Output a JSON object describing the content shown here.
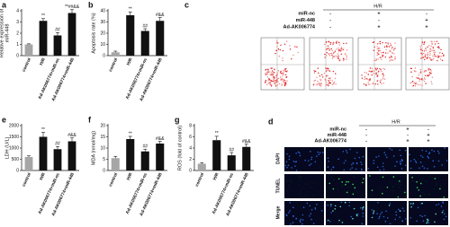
{
  "chart_data": [
    {
      "type": "bar",
      "panel": "a",
      "ylabel": [
        "Relative expression of",
        "miR-448"
      ],
      "categories": [
        "control",
        "H/R",
        "Ad-AK006774+miR-nc",
        "Ad-AK006774+miR-448"
      ],
      "values": [
        1,
        3.1,
        1.8,
        3.8
      ],
      "errors": [
        0.05,
        0.2,
        0.25,
        0.3
      ],
      "colors": [
        "#a6a6a6",
        "#111111",
        "#111111",
        "#111111"
      ],
      "annotations": [
        null,
        "**",
        "##",
        "**##&&"
      ],
      "ylim": [
        0,
        4
      ],
      "yticks": [
        0,
        1,
        2,
        3,
        4
      ]
    },
    {
      "type": "bar",
      "panel": "b",
      "ylabel": [
        "Apoptosis rate (%)"
      ],
      "categories": [
        "control",
        "H/R",
        "Ad-AK006774+miR-nc",
        "Ad-AK006774+miR-448"
      ],
      "values": [
        3,
        36,
        22,
        31
      ],
      "errors": [
        1,
        3,
        2,
        3
      ],
      "colors": [
        "#a6a6a6",
        "#111111",
        "#111111",
        "#111111"
      ],
      "annotations": [
        null,
        "**",
        "##",
        "#&&"
      ],
      "ylim": [
        0,
        40
      ],
      "yticks": [
        0,
        10,
        20,
        30,
        40
      ]
    },
    {
      "type": "bar",
      "panel": "e",
      "ylabel": [
        "LDH (U/L)"
      ],
      "categories": [
        "control",
        "H/R",
        "Ad-AK006774+miR-nc",
        "Ad-AK006774+miR-448"
      ],
      "values": [
        600,
        1500,
        950,
        1300
      ],
      "errors": [
        50,
        200,
        120,
        150
      ],
      "colors": [
        "#a6a6a6",
        "#111111",
        "#111111",
        "#111111"
      ],
      "annotations": [
        null,
        "**",
        "##",
        "#&&"
      ],
      "ylim": [
        0,
        2000
      ],
      "yticks": [
        0,
        500,
        1000,
        1500,
        2000
      ]
    },
    {
      "type": "bar",
      "panel": "f",
      "ylabel": [
        "MDA (nmol/mg)"
      ],
      "categories": [
        "control",
        "H/R",
        "Ad-AK006774+miR-nc",
        "Ad-AK006774+miR-448"
      ],
      "values": [
        5.5,
        14,
        8.5,
        12
      ],
      "errors": [
        0.8,
        1.2,
        1,
        1
      ],
      "colors": [
        "#a6a6a6",
        "#111111",
        "#111111",
        "#111111"
      ],
      "annotations": [
        null,
        "**",
        "##",
        "#&&"
      ],
      "ylim": [
        0,
        20
      ],
      "yticks": [
        0,
        5,
        10,
        15,
        20
      ]
    },
    {
      "type": "bar",
      "panel": "g",
      "ylabel": [
        "ROS (fold of control)"
      ],
      "categories": [
        "control",
        "H/R",
        "Ad-AK006774+miR-nc",
        "Ad-AK006774+miR-448"
      ],
      "values": [
        1.2,
        5.4,
        2.7,
        4.2
      ],
      "errors": [
        0.2,
        0.7,
        0.5,
        0.5
      ],
      "colors": [
        "#a6a6a6",
        "#111111",
        "#111111",
        "#111111"
      ],
      "annotations": [
        null,
        "**",
        "##",
        "#&&"
      ],
      "ylim": [
        0,
        8
      ],
      "yticks": [
        0,
        2,
        4,
        6,
        8
      ]
    }
  ],
  "panels": {
    "c": {
      "label": "c",
      "group": "H/R",
      "rows": [
        {
          "name": "miR-nc",
          "signs": [
            "-",
            "+",
            "-"
          ]
        },
        {
          "name": "miR-448",
          "signs": [
            "-",
            "-",
            "+"
          ]
        },
        {
          "name": "Ad-AK006774",
          "signs": [
            "-",
            "+",
            "+"
          ]
        }
      ]
    },
    "d": {
      "label": "d",
      "group": "H/R",
      "rows": [
        {
          "name": "miR-nc",
          "signs": [
            "-",
            "+",
            "-"
          ]
        },
        {
          "name": "miR-448",
          "signs": [
            "-",
            "-",
            "+"
          ]
        },
        {
          "name": "Ad-AK006774",
          "signs": [
            "-",
            "+",
            "+"
          ]
        }
      ],
      "stains": [
        "DAPI",
        "TUNEL",
        "Merge"
      ]
    }
  }
}
